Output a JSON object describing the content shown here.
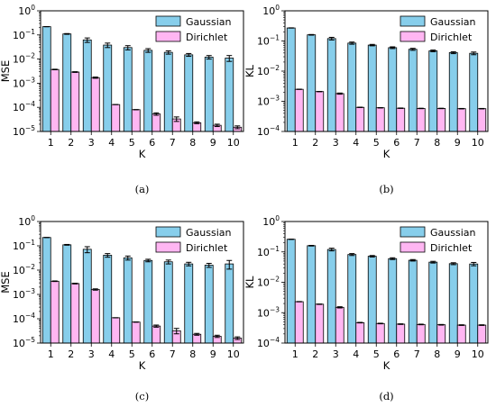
{
  "chart_data": [
    {
      "type": "bar",
      "caption": "(a)",
      "xlabel": "K",
      "ylabel": "MSE",
      "yscale": "log",
      "ylim": [
        1e-05,
        1
      ],
      "categories": [
        "1",
        "2",
        "3",
        "4",
        "5",
        "6",
        "7",
        "8",
        "9",
        "10"
      ],
      "series": [
        {
          "name": "Gaussian",
          "color": "#87ceeb",
          "values": [
            0.22,
            0.11,
            0.062,
            0.038,
            0.03,
            0.023,
            0.019,
            0.015,
            0.012,
            0.011
          ],
          "err_lower": [
            0.002,
            0.004,
            0.013,
            0.008,
            0.006,
            0.004,
            0.003,
            0.002,
            0.002,
            0.003
          ],
          "err_upper": [
            0.002,
            0.004,
            0.013,
            0.008,
            0.006,
            0.004,
            0.003,
            0.002,
            0.002,
            0.003
          ]
        },
        {
          "name": "Dirichlet",
          "color": "#ffb6f2",
          "values": [
            0.0037,
            0.0029,
            0.0017,
            0.00013,
            8e-05,
            5.3e-05,
            3.3e-05,
            2.3e-05,
            1.8e-05,
            1.5e-05
          ],
          "err_lower": [
            0.0001,
            0.0001,
            0.0001,
            1e-06,
            1e-06,
            6e-06,
            7e-06,
            2e-06,
            2e-06,
            2e-06
          ],
          "err_upper": [
            0.0001,
            0.0001,
            0.0001,
            1e-06,
            1e-06,
            6e-06,
            7e-06,
            2e-06,
            2e-06,
            2e-06
          ]
        }
      ],
      "legend": "top-right"
    },
    {
      "type": "bar",
      "caption": "(b)",
      "xlabel": "K",
      "ylabel": "KL",
      "yscale": "log",
      "ylim": [
        0.0001,
        1
      ],
      "categories": [
        "1",
        "2",
        "3",
        "4",
        "5",
        "6",
        "7",
        "8",
        "9",
        "10"
      ],
      "series": [
        {
          "name": "Gaussian",
          "color": "#87ceeb",
          "values": [
            0.27,
            0.16,
            0.12,
            0.085,
            0.073,
            0.06,
            0.053,
            0.047,
            0.041,
            0.039
          ],
          "err_lower": [
            0.003,
            0.004,
            0.012,
            0.007,
            0.004,
            0.004,
            0.004,
            0.003,
            0.003,
            0.004
          ],
          "err_upper": [
            0.003,
            0.004,
            0.012,
            0.007,
            0.004,
            0.004,
            0.004,
            0.003,
            0.003,
            0.004
          ]
        },
        {
          "name": "Dirichlet",
          "color": "#ffb6f2",
          "values": [
            0.0025,
            0.0021,
            0.0018,
            0.00063,
            0.00061,
            0.00059,
            0.00058,
            0.00058,
            0.00057,
            0.00057
          ],
          "err_lower": [
            3e-05,
            3e-05,
            8e-05,
            1e-05,
            1e-05,
            1e-05,
            1e-05,
            1e-05,
            1e-05,
            1e-05
          ],
          "err_upper": [
            3e-05,
            3e-05,
            8e-05,
            1e-05,
            1e-05,
            1e-05,
            1e-05,
            1e-05,
            1e-05,
            1e-05
          ]
        }
      ],
      "legend": "top-right"
    },
    {
      "type": "bar",
      "caption": "(c)",
      "xlabel": "K",
      "ylabel": "MSE",
      "yscale": "log",
      "ylim": [
        1e-05,
        1
      ],
      "categories": [
        "1",
        "2",
        "3",
        "4",
        "5",
        "6",
        "7",
        "8",
        "9",
        "10"
      ],
      "series": [
        {
          "name": "Gaussian",
          "color": "#87ceeb",
          "values": [
            0.22,
            0.11,
            0.072,
            0.041,
            0.032,
            0.025,
            0.022,
            0.018,
            0.016,
            0.018
          ],
          "err_lower": [
            0.002,
            0.004,
            0.02,
            0.007,
            0.006,
            0.003,
            0.004,
            0.003,
            0.003,
            0.007
          ],
          "err_upper": [
            0.002,
            0.004,
            0.02,
            0.007,
            0.006,
            0.003,
            0.004,
            0.003,
            0.003,
            0.007
          ]
        },
        {
          "name": "Dirichlet",
          "color": "#ffb6f2",
          "values": [
            0.0035,
            0.0028,
            0.0016,
            0.00011,
            7.3e-05,
            5e-05,
            3.2e-05,
            2.3e-05,
            1.9e-05,
            1.6e-05
          ],
          "err_lower": [
            0.0001,
            0.0001,
            0.0001,
            1e-06,
            1e-06,
            5e-06,
            8e-06,
            2e-06,
            2e-06,
            2e-06
          ],
          "err_upper": [
            0.0001,
            0.0001,
            0.0001,
            1e-06,
            1e-06,
            5e-06,
            8e-06,
            2e-06,
            2e-06,
            2e-06
          ]
        }
      ],
      "legend": "top-right"
    },
    {
      "type": "bar",
      "caption": "(d)",
      "xlabel": "K",
      "ylabel": "KL",
      "yscale": "log",
      "ylim": [
        0.0001,
        1
      ],
      "categories": [
        "1",
        "2",
        "3",
        "4",
        "5",
        "6",
        "7",
        "8",
        "9",
        "10"
      ],
      "series": [
        {
          "name": "Gaussian",
          "color": "#87ceeb",
          "values": [
            0.26,
            0.16,
            0.12,
            0.082,
            0.072,
            0.06,
            0.053,
            0.046,
            0.041,
            0.04
          ],
          "err_lower": [
            0.003,
            0.004,
            0.012,
            0.006,
            0.004,
            0.004,
            0.003,
            0.003,
            0.003,
            0.005
          ],
          "err_upper": [
            0.003,
            0.004,
            0.012,
            0.006,
            0.004,
            0.004,
            0.003,
            0.003,
            0.003,
            0.005
          ]
        },
        {
          "name": "Dirichlet",
          "color": "#ffb6f2",
          "values": [
            0.0023,
            0.0019,
            0.0015,
            0.00047,
            0.00044,
            0.00042,
            0.00041,
            0.0004,
            0.00039,
            0.00039
          ],
          "err_lower": [
            3e-05,
            3e-05,
            7e-05,
            1e-05,
            1e-05,
            1e-05,
            1e-05,
            1e-05,
            1e-05,
            1e-05
          ],
          "err_upper": [
            3e-05,
            3e-05,
            7e-05,
            1e-05,
            1e-05,
            1e-05,
            1e-05,
            1e-05,
            1e-05,
            1e-05
          ]
        }
      ],
      "legend": "top-right"
    }
  ]
}
